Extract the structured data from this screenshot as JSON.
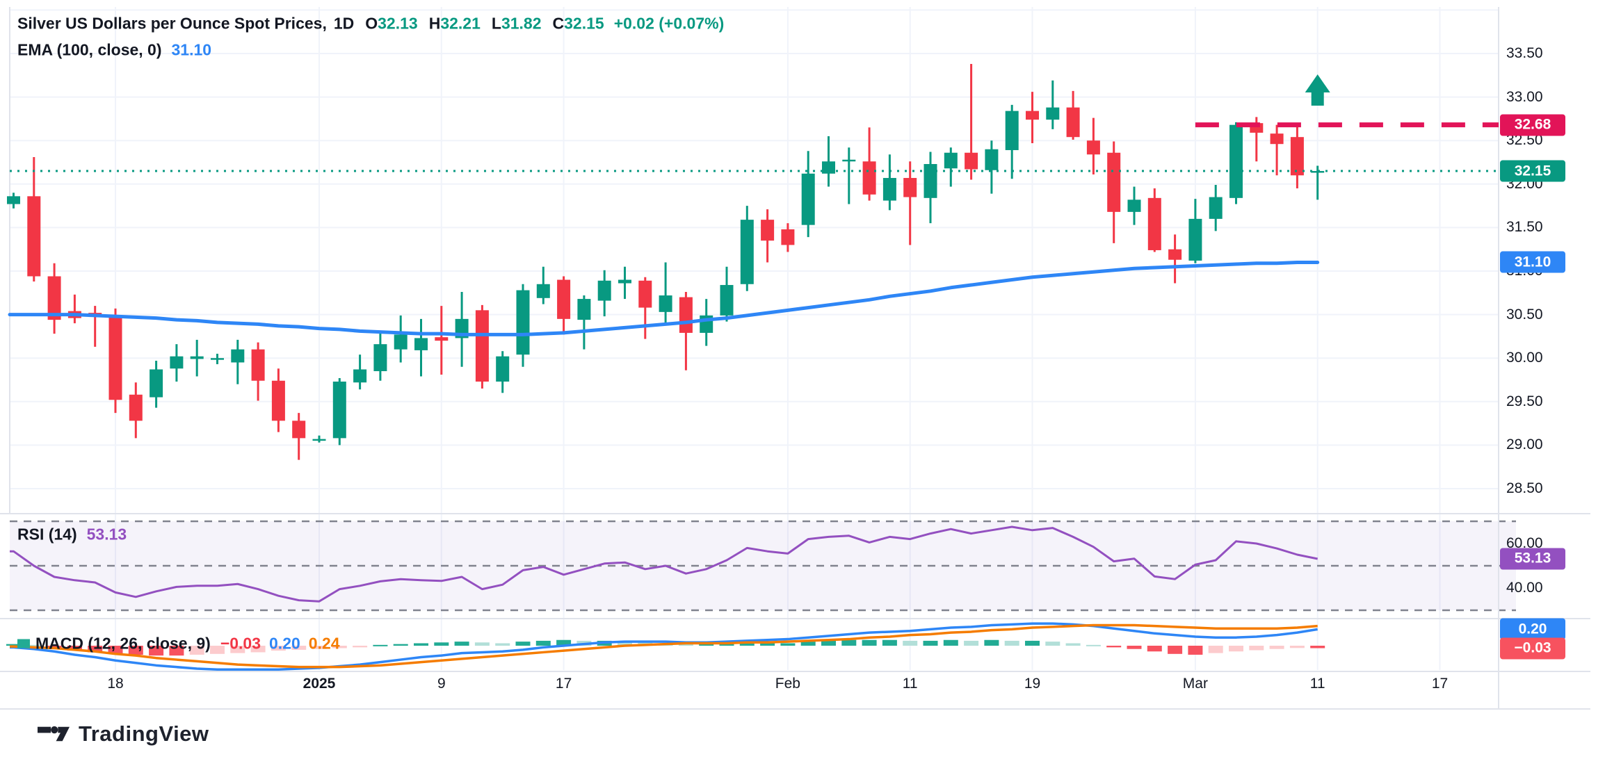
{
  "legend": {
    "title": "Silver US Dollars per Ounce Spot Prices,",
    "interval": "1D",
    "o_label": "O",
    "h_label": "H",
    "l_label": "L",
    "c_label": "C",
    "open": "32.13",
    "high": "32.21",
    "low": "31.82",
    "close": "32.15",
    "change": "+0.02 (+0.07%)",
    "ema_label": "EMA (100, close, 0)",
    "ema_value": "31.10",
    "rsi_label": "RSI (14)",
    "rsi_value": "53.13",
    "macd_label": "MACD (12, 26, close, 9)",
    "macd_hist_value": "−0.03",
    "macd_value": "0.20",
    "macd_signal_value": "0.24"
  },
  "branding": {
    "logo_text": "TradingView"
  },
  "price_axis": {
    "ticks": [
      "33.50",
      "33.00",
      "32.50",
      "32.00",
      "31.50",
      "31.00",
      "30.50",
      "30.00",
      "29.50",
      "29.00",
      "28.50"
    ],
    "badges": [
      {
        "text": "32.68",
        "price": 32.68,
        "color": "#e21458",
        "name": "level-price-badge"
      },
      {
        "text": "32.15",
        "price": 32.15,
        "color": "#089981",
        "name": "current-price-badge"
      },
      {
        "text": "31.10",
        "price": 31.1,
        "color": "#2e86f6",
        "name": "ema-price-badge"
      }
    ]
  },
  "rsi_axis": {
    "ticks": [
      {
        "label": "60.00",
        "value": 60
      },
      {
        "label": "40.00",
        "value": 40
      }
    ],
    "badge": {
      "text": "53.13",
      "value": 53.13,
      "color": "#9350c0"
    }
  },
  "macd_axis": {
    "badges": [
      {
        "text": "0.20",
        "value": 0.2,
        "color": "#2e86f6",
        "name": "macd-line-badge"
      },
      {
        "text": "−0.03",
        "value": -0.03,
        "color": "#f7525f",
        "name": "macd-hist-badge"
      }
    ]
  },
  "time_axis": {
    "ticks": [
      {
        "label": "18",
        "i": 5
      },
      {
        "label": "2025",
        "i": 15,
        "bold": true
      },
      {
        "label": "9",
        "i": 21
      },
      {
        "label": "17",
        "i": 27
      },
      {
        "label": "Feb",
        "i": 38
      },
      {
        "label": "11",
        "i": 44
      },
      {
        "label": "19",
        "i": 50
      },
      {
        "label": "Mar",
        "i": 58
      },
      {
        "label": "11",
        "i": 64
      },
      {
        "label": "17",
        "i": 70
      }
    ]
  },
  "colors": {
    "up": "#089981",
    "down": "#f23645",
    "ema": "#2e86f6",
    "macd_line": "#2e86f6",
    "signal_line": "#f57c00",
    "hist_grow_above": "#22ab94",
    "hist_fall_above": "#b2dfd8",
    "hist_fall_below": "#f7525f",
    "hist_grow_below": "#fccbcd",
    "rsi": "#9350c0",
    "level_pink": "#e21458",
    "grid": "#f0f3fa",
    "separator": "#e0e3eb",
    "axis_text": "#131722",
    "rsi_band_fill": "rgba(118,82,178,0.07)",
    "rsi_dash": "#80838e",
    "dotted_price": "#089981",
    "marker_green": "#089981"
  },
  "chart_data": {
    "type": "candlestick",
    "title": "Silver US Dollars per Ounce Spot Prices",
    "interval": "1D",
    "legend_last": {
      "open": 32.13,
      "high": 32.21,
      "low": 31.82,
      "close": 32.15,
      "change_abs": 0.02,
      "change_pct": 0.07
    },
    "price_axis_ticks": [
      33.5,
      33.0,
      32.5,
      32.0,
      31.5,
      31.0,
      30.5,
      30.0,
      29.5,
      29.0,
      28.5
    ],
    "candles": [
      [
        31.77,
        31.9,
        31.72,
        31.86
      ],
      [
        31.86,
        32.31,
        30.88,
        30.94
      ],
      [
        30.94,
        31.09,
        30.28,
        30.44
      ],
      [
        30.54,
        30.73,
        30.4,
        30.46
      ],
      [
        30.52,
        30.6,
        30.13,
        30.49
      ],
      [
        30.47,
        30.57,
        29.37,
        29.52
      ],
      [
        29.58,
        29.72,
        29.08,
        29.28
      ],
      [
        29.55,
        29.97,
        29.43,
        29.87
      ],
      [
        29.88,
        30.16,
        29.73,
        30.02
      ],
      [
        29.99,
        30.21,
        29.79,
        30.02
      ],
      [
        30.0,
        30.05,
        29.93,
        30.0
      ],
      [
        29.95,
        30.21,
        29.7,
        30.1
      ],
      [
        30.1,
        30.18,
        29.51,
        29.74
      ],
      [
        29.74,
        29.88,
        29.15,
        29.28
      ],
      [
        29.28,
        29.37,
        28.83,
        29.08
      ],
      [
        29.07,
        29.11,
        29.03,
        29.07
      ],
      [
        29.08,
        29.77,
        29.0,
        29.73
      ],
      [
        29.72,
        30.04,
        29.64,
        29.87
      ],
      [
        29.85,
        30.31,
        29.74,
        30.16
      ],
      [
        30.1,
        30.49,
        29.95,
        30.27
      ],
      [
        30.09,
        30.45,
        29.79,
        30.23
      ],
      [
        30.24,
        30.6,
        29.81,
        30.2
      ],
      [
        30.23,
        30.76,
        29.9,
        30.45
      ],
      [
        30.55,
        30.61,
        29.65,
        29.73
      ],
      [
        29.73,
        30.08,
        29.6,
        30.02
      ],
      [
        30.04,
        30.85,
        29.9,
        30.78
      ],
      [
        30.69,
        31.05,
        30.62,
        30.85
      ],
      [
        30.9,
        30.94,
        30.27,
        30.45
      ],
      [
        30.44,
        30.72,
        30.1,
        30.68
      ],
      [
        30.66,
        31.01,
        30.48,
        30.89
      ],
      [
        30.86,
        31.05,
        30.68,
        30.9
      ],
      [
        30.89,
        30.93,
        30.22,
        30.58
      ],
      [
        30.53,
        31.1,
        30.4,
        30.72
      ],
      [
        30.7,
        30.76,
        29.86,
        30.29
      ],
      [
        30.29,
        30.68,
        30.14,
        30.49
      ],
      [
        30.49,
        31.05,
        30.42,
        30.84
      ],
      [
        30.85,
        31.75,
        30.77,
        31.59
      ],
      [
        31.59,
        31.71,
        31.1,
        31.35
      ],
      [
        31.48,
        31.55,
        31.22,
        31.3
      ],
      [
        31.53,
        32.38,
        31.39,
        32.12
      ],
      [
        32.12,
        32.55,
        31.97,
        32.26
      ],
      [
        32.26,
        32.42,
        31.77,
        32.28
      ],
      [
        32.26,
        32.65,
        31.81,
        31.88
      ],
      [
        31.81,
        32.34,
        31.7,
        32.07
      ],
      [
        32.07,
        32.26,
        31.3,
        31.85
      ],
      [
        31.84,
        32.37,
        31.55,
        32.23
      ],
      [
        32.18,
        32.42,
        31.97,
        32.36
      ],
      [
        32.36,
        33.38,
        32.05,
        32.17
      ],
      [
        32.16,
        32.5,
        31.89,
        32.4
      ],
      [
        32.39,
        32.91,
        32.06,
        32.84
      ],
      [
        32.84,
        33.06,
        32.47,
        32.74
      ],
      [
        32.74,
        33.19,
        32.63,
        32.88
      ],
      [
        32.88,
        33.07,
        32.51,
        32.54
      ],
      [
        32.5,
        32.76,
        32.11,
        32.34
      ],
      [
        32.36,
        32.49,
        31.32,
        31.68
      ],
      [
        31.68,
        31.97,
        31.53,
        31.82
      ],
      [
        31.84,
        31.95,
        31.22,
        31.24
      ],
      [
        31.25,
        31.42,
        30.86,
        31.13
      ],
      [
        31.12,
        31.83,
        31.09,
        31.6
      ],
      [
        31.6,
        31.99,
        31.46,
        31.85
      ],
      [
        31.84,
        32.71,
        31.77,
        32.68
      ],
      [
        32.7,
        32.77,
        32.26,
        32.59
      ],
      [
        32.58,
        32.68,
        32.1,
        32.46
      ],
      [
        32.54,
        32.66,
        31.95,
        32.1
      ],
      [
        32.13,
        32.21,
        31.82,
        32.15
      ]
    ],
    "ema100": [
      30.5,
      30.5,
      30.5,
      30.5,
      30.49,
      30.48,
      30.47,
      30.46,
      30.44,
      30.43,
      30.41,
      30.4,
      30.39,
      30.37,
      30.36,
      30.34,
      30.33,
      30.31,
      30.3,
      30.29,
      30.28,
      30.28,
      30.27,
      30.27,
      30.27,
      30.27,
      30.28,
      30.29,
      30.31,
      30.33,
      30.35,
      30.37,
      30.39,
      30.41,
      30.44,
      30.46,
      30.49,
      30.52,
      30.55,
      30.58,
      30.61,
      30.64,
      30.67,
      30.71,
      30.74,
      30.77,
      30.81,
      30.84,
      30.87,
      30.9,
      30.93,
      30.95,
      30.97,
      30.99,
      31.01,
      31.03,
      31.04,
      31.05,
      31.06,
      31.07,
      31.08,
      31.09,
      31.09,
      31.1,
      31.1
    ],
    "current_price_line": {
      "price": 32.15,
      "style": "dotted",
      "color": "#089981"
    },
    "level_line": {
      "price": 32.68,
      "style": "dashed",
      "color": "#e21458",
      "start_index": 58
    },
    "marker": {
      "type": "arrow-up",
      "candle_index": 64,
      "color": "#089981"
    },
    "rsi": {
      "period": 14,
      "last": 53.13,
      "levels": [
        70,
        50,
        30
      ],
      "axis_ticks": [
        60,
        40
      ],
      "values": [
        56.5,
        50.0,
        45.0,
        43.5,
        42.5,
        38.0,
        36.0,
        38.5,
        40.5,
        41.0,
        41.0,
        41.8,
        39.5,
        36.5,
        34.5,
        34.0,
        39.5,
        41.0,
        43.0,
        44.0,
        43.5,
        43.2,
        45.0,
        39.5,
        41.5,
        48.0,
        49.5,
        46.0,
        48.5,
        51.0,
        51.5,
        48.5,
        50.0,
        46.5,
        48.5,
        52.5,
        58.0,
        56.5,
        55.5,
        62.0,
        63.0,
        63.5,
        60.5,
        63.0,
        62.0,
        64.5,
        66.5,
        64.5,
        66.0,
        67.5,
        66.0,
        67.0,
        63.0,
        58.5,
        52.0,
        53.2,
        45.2,
        44.0,
        50.5,
        52.5,
        61.0,
        60.0,
        57.8,
        55.0,
        53.13
      ]
    },
    "macd": {
      "params": "12, 26, close, 9",
      "last": {
        "histogram": -0.03,
        "macd": 0.2,
        "signal": 0.24
      },
      "macd": [
        -0.02,
        -0.04,
        -0.07,
        -0.11,
        -0.14,
        -0.18,
        -0.21,
        -0.24,
        -0.26,
        -0.28,
        -0.29,
        -0.29,
        -0.29,
        -0.29,
        -0.28,
        -0.27,
        -0.25,
        -0.23,
        -0.2,
        -0.17,
        -0.14,
        -0.12,
        -0.09,
        -0.08,
        -0.07,
        -0.05,
        -0.02,
        0.0,
        0.02,
        0.04,
        0.05,
        0.05,
        0.05,
        0.04,
        0.04,
        0.05,
        0.06,
        0.07,
        0.08,
        0.1,
        0.12,
        0.14,
        0.16,
        0.17,
        0.18,
        0.2,
        0.22,
        0.23,
        0.25,
        0.26,
        0.27,
        0.27,
        0.26,
        0.24,
        0.21,
        0.18,
        0.15,
        0.13,
        0.11,
        0.1,
        0.1,
        0.11,
        0.13,
        0.16,
        0.2
      ],
      "signal": [
        -0.01,
        -0.02,
        -0.03,
        -0.05,
        -0.07,
        -0.1,
        -0.12,
        -0.15,
        -0.17,
        -0.19,
        -0.21,
        -0.23,
        -0.24,
        -0.25,
        -0.26,
        -0.26,
        -0.26,
        -0.25,
        -0.24,
        -0.22,
        -0.2,
        -0.18,
        -0.16,
        -0.14,
        -0.12,
        -0.1,
        -0.08,
        -0.06,
        -0.04,
        -0.02,
        0.0,
        0.01,
        0.02,
        0.03,
        0.03,
        0.03,
        0.04,
        0.04,
        0.05,
        0.06,
        0.07,
        0.08,
        0.1,
        0.11,
        0.13,
        0.14,
        0.16,
        0.17,
        0.19,
        0.2,
        0.22,
        0.23,
        0.24,
        0.25,
        0.25,
        0.25,
        0.24,
        0.23,
        0.22,
        0.21,
        0.21,
        0.21,
        0.21,
        0.22,
        0.24
      ],
      "histogram": [
        0.02,
        0.01,
        -0.03,
        -0.06,
        -0.08,
        -0.1,
        -0.11,
        -0.12,
        -0.12,
        -0.11,
        -0.1,
        -0.09,
        -0.08,
        -0.06,
        -0.05,
        -0.04,
        -0.03,
        -0.02,
        0.01,
        0.02,
        0.03,
        0.04,
        0.05,
        0.04,
        0.03,
        0.05,
        0.06,
        0.07,
        0.06,
        0.06,
        0.05,
        0.04,
        0.03,
        0.02,
        0.02,
        0.02,
        0.03,
        0.03,
        0.03,
        0.05,
        0.06,
        0.07,
        0.07,
        0.07,
        0.06,
        0.06,
        0.07,
        0.06,
        0.07,
        0.06,
        0.06,
        0.05,
        0.03,
        0.01,
        -0.02,
        -0.04,
        -0.07,
        -0.1,
        -0.11,
        -0.09,
        -0.07,
        -0.055,
        -0.04,
        -0.028,
        -0.03
      ]
    }
  }
}
